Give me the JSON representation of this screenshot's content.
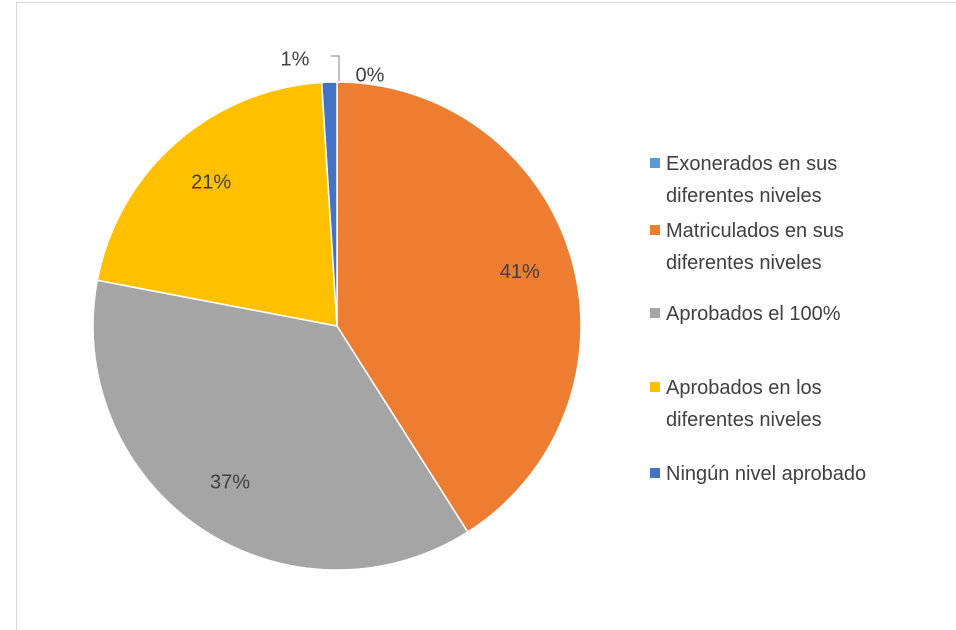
{
  "chart_data": {
    "type": "pie",
    "categories": [
      "Exonerados en sus diferentes niveles",
      "Matriculados en sus diferentes niveles",
      "Aprobados el 100%",
      "Aprobados en los diferentes niveles",
      "Ningún nivel aprobado"
    ],
    "values": [
      0,
      41,
      37,
      21,
      1
    ],
    "value_labels": [
      "0%",
      "41%",
      "37%",
      "21%",
      "1%"
    ],
    "colors": [
      "#5b9bd5",
      "#ed7d31",
      "#a5a5a5",
      "#ffc000",
      "#4472c4"
    ],
    "legend": "right"
  }
}
